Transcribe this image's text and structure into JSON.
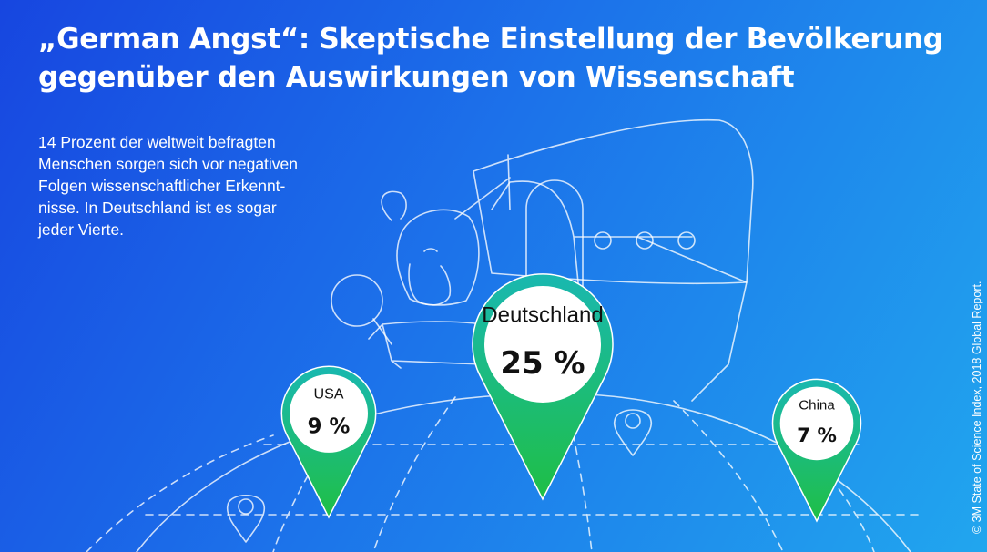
{
  "title": {
    "line1": "„German Angst“: Skeptische Einstellung der Bevölkerung",
    "line2": "gegenüber den Auswirkungen von Wissenschaft"
  },
  "subtitle": "14 Prozent der weltweit befragten Menschen sorgen sich vor negativen Folgen wissenschaftlicher Erkennt-nisse. In Deutschland ist es sogar jeder Vierte.",
  "credit": "© 3M State of Science Index, 2018 Global Report.",
  "colors": {
    "background_start": "#1746e0",
    "background_end": "#21a6ee",
    "pin_top": "#19b8b0",
    "pin_bottom": "#1fbf45",
    "pin_text": "#111111"
  },
  "chart_data": {
    "type": "bar",
    "title": "„German Angst“: Skeptische Einstellung der Bevölkerung gegenüber den Auswirkungen von Wissenschaft",
    "unit": "%",
    "categories": [
      "USA",
      "Deutschland",
      "China"
    ],
    "values": [
      9,
      25,
      7
    ],
    "value_labels": [
      "9 %",
      "25 %",
      "7 %"
    ]
  }
}
